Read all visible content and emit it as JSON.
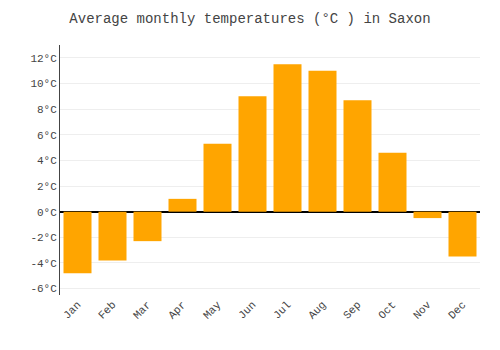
{
  "chart_data": {
    "type": "bar",
    "title": "Average monthly temperatures (°C ) in Saxon",
    "categories": [
      "Jan",
      "Feb",
      "Mar",
      "Apr",
      "May",
      "Jun",
      "Jul",
      "Aug",
      "Sep",
      "Oct",
      "Nov",
      "Dec"
    ],
    "values": [
      -4.8,
      -3.8,
      -2.3,
      1.0,
      5.3,
      9.0,
      11.5,
      11.0,
      8.7,
      4.6,
      -0.5,
      -3.5
    ],
    "color": "#FFA500",
    "ylim": [
      -6.5,
      13
    ],
    "yticks": [
      {
        "value": -6,
        "label": "-6°C"
      },
      {
        "value": -4,
        "label": "-4°C"
      },
      {
        "value": -2,
        "label": "-2°C"
      },
      {
        "value": 0,
        "label": "0°C"
      },
      {
        "value": 2,
        "label": "2°C"
      },
      {
        "value": 4,
        "label": "4°C"
      },
      {
        "value": 6,
        "label": "6°C"
      },
      {
        "value": 8,
        "label": "8°C"
      },
      {
        "value": 10,
        "label": "10°C"
      },
      {
        "value": 12,
        "label": "12°C"
      }
    ],
    "grid": true
  }
}
